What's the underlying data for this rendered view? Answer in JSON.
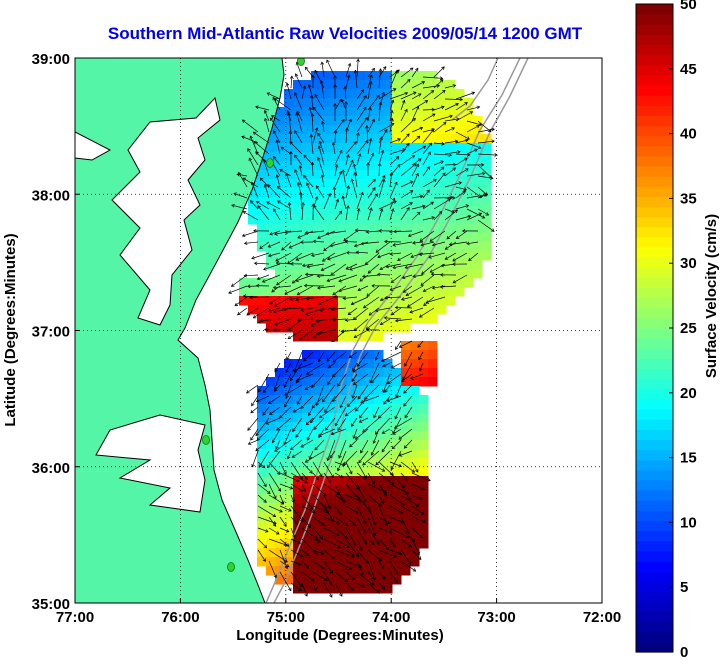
{
  "title": "Southern Mid-Atlantic Raw Velocities 2009/05/14 1200 GMT",
  "map": {
    "x_axis_label": "Longitude (Degrees:Minutes)",
    "y_axis_label": "Latitude (Degrees:Minutes)",
    "x_ticks": [
      "77:00",
      "76:00",
      "75:00",
      "74:00",
      "73:00",
      "72:00"
    ],
    "y_ticks": [
      "39:00",
      "38:00",
      "37:00",
      "36:00",
      "35:00"
    ],
    "lon_range": [
      -77,
      -72
    ],
    "lat_range": [
      35,
      39
    ],
    "colors": {
      "land": "#55f5a8",
      "coastline": "#000000",
      "isobath": "#9a9a9a",
      "station": "#2fd22f",
      "vector": "#000000",
      "title": "#0000ee"
    }
  },
  "colorbar": {
    "label": "Surface Velocity (cm/s)",
    "ticks": [
      "0",
      "5",
      "10",
      "15",
      "20",
      "25",
      "30",
      "35",
      "40",
      "45",
      "50"
    ],
    "range": [
      0,
      50
    ],
    "colormap": "jet"
  }
}
